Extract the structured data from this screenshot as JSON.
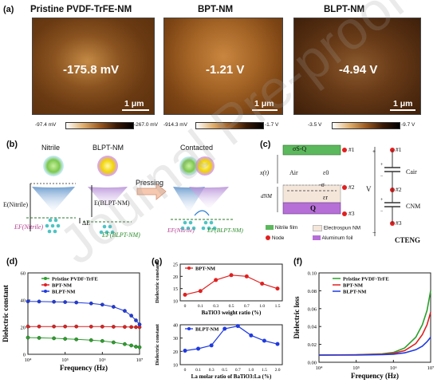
{
  "panel_a": {
    "label": "(a)",
    "images": [
      {
        "title": "Pristine PVDF-TrFE-NM",
        "value": "-175.8 mV",
        "scale": "1 μm",
        "cbar_low": "-97.4 mV",
        "cbar_high": "-267.0 mV"
      },
      {
        "title": "BPT-NM",
        "value": "-1.21 V",
        "scale": "1 μm",
        "cbar_low": "-914.3 mV",
        "cbar_high": "-1.7 V"
      },
      {
        "title": "BLPT-NM",
        "value": "-4.94 V",
        "scale": "1 μm",
        "cbar_low": "-3.5 V",
        "cbar_high": "-9.7 V"
      }
    ]
  },
  "panel_b": {
    "label": "(b)",
    "nitrile": "Nitrile",
    "blpt": "BLPT-NM",
    "pressing": "Pressing",
    "contacted": "Contacted",
    "e_nitrile": "E(Nitrile)",
    "e_blpt": "E(BLPT-NM)",
    "delta_e": "ΔE",
    "ef_nitrile": "EF(Nitrile)",
    "ef_blpt": "EF(BLPT-NM)"
  },
  "panel_c": {
    "label": "(c)",
    "top_layer": "σS-Q",
    "xt": "x(t)",
    "air": "Air",
    "eps0": "ε0",
    "sigma": "-σ",
    "dnm": "dNM",
    "epsr": "εr",
    "q": "Q",
    "nodes": [
      "#1",
      "#2",
      "#3"
    ],
    "v": "V",
    "c_air": "Cair",
    "c_nm": "CNM",
    "c_teng": "CTENG",
    "legend": [
      "Nitrile film",
      "Electrospun NM",
      "Node",
      "Aluminum foil"
    ],
    "colors": {
      "nitrile": "#5cb85c",
      "electrospun": "#f5e6da",
      "node": "#e02020",
      "aluminum": "#b56fd6"
    }
  },
  "panel_d": {
    "label": "(d)",
    "chart_data": {
      "type": "line",
      "xlabel": "Frequency (Hz)",
      "ylabel": "Dielectric constant",
      "x_scale": "log",
      "xlim": [
        10000,
        10000000
      ],
      "ylim": [
        0,
        60
      ],
      "x_ticks": [
        "10⁴",
        "10⁵",
        "10⁶",
        "10⁷"
      ],
      "y_ticks": [
        "0",
        "20",
        "40",
        "60"
      ],
      "legend_position": "top-right",
      "series": [
        {
          "name": "Pristine PVDF-TrFE",
          "color": "#2aa02a",
          "x": [
            10000,
            20000,
            50000,
            100000,
            200000,
            500000,
            1000000,
            2000000,
            4000000,
            6000000,
            8000000,
            10000000
          ],
          "y": [
            12.3,
            12.1,
            11.8,
            11.4,
            11.0,
            10.4,
            9.8,
            8.8,
            7.5,
            6.5,
            5.6,
            5.2
          ]
        },
        {
          "name": "BPT-NM",
          "color": "#e02020",
          "x": [
            10000,
            20000,
            50000,
            100000,
            200000,
            500000,
            1000000,
            2000000,
            4000000,
            6000000,
            8000000,
            10000000
          ],
          "y": [
            20.5,
            20.5,
            20.5,
            20.5,
            20.5,
            20.4,
            20.4,
            20.3,
            20.2,
            20.1,
            20.0,
            20.0
          ]
        },
        {
          "name": "BLPT-NM",
          "color": "#1f3ae0",
          "x": [
            10000,
            20000,
            50000,
            100000,
            200000,
            500000,
            1000000,
            2000000,
            4000000,
            6000000,
            8000000,
            10000000
          ],
          "y": [
            39.0,
            38.9,
            38.7,
            38.5,
            38.2,
            37.5,
            36.6,
            35.0,
            32.0,
            28.5,
            25.0,
            22.0
          ]
        }
      ]
    }
  },
  "panel_e": {
    "label": "(e)",
    "chart_data": [
      {
        "type": "line",
        "xlabel": "BaTiO3 weight ratio (%)",
        "ylabel": "Dielectric constant",
        "categories": [
          "0",
          "0.1",
          "0.3",
          "0.5",
          "0.7",
          "1.0",
          "1.5"
        ],
        "ylim": [
          10,
          25
        ],
        "y_ticks": [
          "10",
          "15",
          "20",
          "25"
        ],
        "series": [
          {
            "name": "BPT-NM",
            "color": "#e02020",
            "values": [
              12.5,
              14,
              18.5,
              20.5,
              20.0,
              17.0,
              15.0
            ]
          }
        ]
      },
      {
        "type": "line",
        "xlabel": "La molar ratio of BaTiO3:La (%)",
        "ylabel": "Dielectric constant",
        "categories": [
          "0",
          "0.1",
          "0.3",
          "0.5",
          "0.7",
          "1.0",
          "1.5",
          "2.0"
        ],
        "ylim": [
          10,
          40
        ],
        "y_ticks": [
          "10",
          "20",
          "30",
          "40"
        ],
        "series": [
          {
            "name": "BLPT-NM",
            "color": "#1f3ae0",
            "values": [
              20.5,
              22,
              24.5,
              37,
              39,
              32,
              28,
              25.5
            ]
          }
        ]
      }
    ]
  },
  "panel_f": {
    "label": "(f)",
    "chart_data": {
      "type": "line",
      "xlabel": "Frequency (Hz)",
      "ylabel": "Dielectric loss",
      "x_scale": "log",
      "xlim": [
        10000,
        10000000
      ],
      "ylim": [
        0,
        0.1
      ],
      "x_ticks": [
        "10⁴",
        "10⁵",
        "10⁶",
        "10⁷"
      ],
      "y_ticks": [
        "0.00",
        "0.02",
        "0.04",
        "0.06",
        "0.08",
        "0.10"
      ],
      "legend_position": "top-left",
      "series": [
        {
          "name": "Pristine PVDF-TrFE",
          "color": "#2aa02a",
          "x": [
            10000,
            100000,
            500000,
            1000000,
            2000000,
            4000000,
            6000000,
            8000000,
            10000000
          ],
          "y": [
            0.008,
            0.0085,
            0.0095,
            0.011,
            0.016,
            0.028,
            0.042,
            0.058,
            0.08
          ]
        },
        {
          "name": "BPT-NM",
          "color": "#e02020",
          "x": [
            10000,
            100000,
            500000,
            1000000,
            2000000,
            4000000,
            6000000,
            8000000,
            10000000
          ],
          "y": [
            0.008,
            0.0083,
            0.009,
            0.01,
            0.013,
            0.021,
            0.031,
            0.042,
            0.056
          ]
        },
        {
          "name": "BLPT-NM",
          "color": "#1f3ae0",
          "x": [
            10000,
            100000,
            500000,
            1000000,
            2000000,
            4000000,
            6000000,
            8000000,
            10000000
          ],
          "y": [
            0.008,
            0.008,
            0.0085,
            0.009,
            0.0105,
            0.014,
            0.018,
            0.023,
            0.028
          ]
        }
      ]
    }
  }
}
